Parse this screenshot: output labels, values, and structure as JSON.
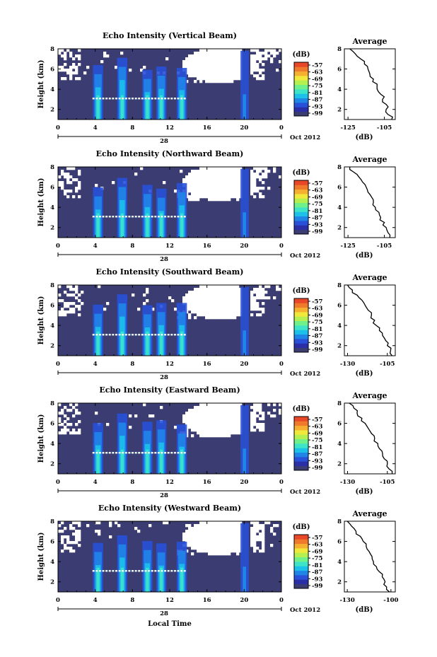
{
  "figure": {
    "date_label": "Oct 2012",
    "day_label": "28",
    "bottom_xlabel": "Local Time",
    "height_ylabel": "Height (km)",
    "unit_label": "(dB)",
    "average_title": "Average",
    "colorbar_ticks": [
      "-57",
      "-63",
      "-69",
      "-75",
      "-81",
      "-87",
      "-93",
      "-99"
    ],
    "colorbar_colors": [
      "#3a3c72",
      "#2a2fa8",
      "#2850d8",
      "#1f86e8",
      "#1cc0e8",
      "#3ee4c8",
      "#6ef08a",
      "#b4f050",
      "#f0e83a",
      "#f5b030",
      "#f07a2c",
      "#e84828"
    ],
    "background_color": "#3a3c72"
  },
  "chart_data": [
    {
      "type": "heatmap",
      "title": "Echo Intensity (Vertical Beam)",
      "xlabel": "",
      "ylabel": "Height (km)",
      "xlim": [
        0,
        24
      ],
      "ylim": [
        1,
        8
      ],
      "x_ticks": [
        "0",
        "4",
        "8",
        "12",
        "16",
        "20",
        "0"
      ],
      "y_ticks": [
        "2",
        "4",
        "6",
        "8"
      ],
      "colorbar_range_db": [
        -99,
        -57
      ],
      "average_profile": {
        "xlabel": "(dB)",
        "x_ticks": [
          "-125",
          "-105"
        ],
        "xlim": [
          -127,
          -99
        ],
        "ylim": [
          1,
          8
        ],
        "height_km": [
          1.0,
          1.5,
          2.0,
          2.5,
          3.0,
          3.5,
          4.0,
          4.5,
          5.0,
          5.5,
          6.0,
          6.5,
          7.0,
          7.5,
          8.0
        ],
        "values_db": [
          -101,
          -103,
          -104,
          -104,
          -106,
          -107,
          -109,
          -109,
          -111,
          -113,
          -114,
          -116,
          -118,
          -121,
          -124
        ]
      }
    },
    {
      "type": "heatmap",
      "title": "Echo Intensity (Northward Beam)",
      "xlabel": "",
      "ylabel": "Height (km)",
      "xlim": [
        0,
        24
      ],
      "ylim": [
        1,
        8
      ],
      "x_ticks": [
        "0",
        "4",
        "8",
        "12",
        "16",
        "20",
        "0"
      ],
      "y_ticks": [
        "2",
        "4",
        "6",
        "8"
      ],
      "colorbar_range_db": [
        -99,
        -57
      ],
      "average_profile": {
        "xlabel": "(dB)",
        "x_ticks": [
          "-125",
          "-105"
        ],
        "xlim": [
          -127,
          -99
        ],
        "ylim": [
          1,
          8
        ],
        "height_km": [
          1.0,
          1.5,
          2.0,
          2.5,
          3.0,
          3.5,
          4.0,
          4.5,
          5.0,
          5.5,
          6.0,
          6.5,
          7.0,
          7.5,
          8.0
        ],
        "values_db": [
          -102,
          -103,
          -104,
          -105,
          -107,
          -108,
          -110,
          -111,
          -112,
          -114,
          -115,
          -117,
          -119,
          -122,
          -124
        ]
      }
    },
    {
      "type": "heatmap",
      "title": "Echo Intensity (Southward Beam)",
      "xlabel": "",
      "ylabel": "Height (km)",
      "xlim": [
        0,
        24
      ],
      "ylim": [
        1,
        8
      ],
      "x_ticks": [
        "0",
        "4",
        "8",
        "12",
        "16",
        "20",
        "0"
      ],
      "y_ticks": [
        "2",
        "4",
        "6",
        "8"
      ],
      "colorbar_range_db": [
        -99,
        -57
      ],
      "average_profile": {
        "xlabel": "(dB)",
        "x_ticks": [
          "-130",
          "-105"
        ],
        "xlim": [
          -132,
          -100
        ],
        "ylim": [
          1,
          8
        ],
        "height_km": [
          1.0,
          1.5,
          2.0,
          2.5,
          3.0,
          3.5,
          4.0,
          4.5,
          5.0,
          5.5,
          6.0,
          6.5,
          7.0,
          7.5,
          8.0
        ],
        "values_db": [
          -102,
          -103,
          -105,
          -106,
          -108,
          -110,
          -112,
          -113,
          -115,
          -117,
          -119,
          -121,
          -124,
          -127,
          -130
        ]
      }
    },
    {
      "type": "heatmap",
      "title": "Echo Intensity (Eastward Beam)",
      "xlabel": "",
      "ylabel": "Height (km)",
      "xlim": [
        0,
        24
      ],
      "ylim": [
        1,
        8
      ],
      "x_ticks": [
        "0",
        "4",
        "8",
        "12",
        "16",
        "20",
        "0"
      ],
      "y_ticks": [
        "2",
        "4",
        "6",
        "8"
      ],
      "colorbar_range_db": [
        -99,
        -57
      ],
      "average_profile": {
        "xlabel": "(dB)",
        "x_ticks": [
          "-130",
          "-105"
        ],
        "xlim": [
          -132,
          -100
        ],
        "ylim": [
          1,
          8
        ],
        "height_km": [
          1.0,
          1.5,
          2.0,
          2.5,
          3.0,
          3.5,
          4.0,
          4.5,
          5.0,
          5.5,
          6.0,
          6.5,
          7.0,
          7.5,
          8.0
        ],
        "values_db": [
          -102,
          -104,
          -105,
          -107,
          -108,
          -110,
          -111,
          -113,
          -115,
          -117,
          -119,
          -121,
          -124,
          -126,
          -129
        ]
      }
    },
    {
      "type": "heatmap",
      "title": "Echo Intensity (Westward Beam)",
      "xlabel": "Local Time",
      "ylabel": "Height (km)",
      "xlim": [
        0,
        24
      ],
      "ylim": [
        1,
        8
      ],
      "x_ticks": [
        "0",
        "4",
        "8",
        "12",
        "16",
        "20",
        "0"
      ],
      "y_ticks": [
        "2",
        "4",
        "6",
        "8"
      ],
      "colorbar_range_db": [
        -99,
        -57
      ],
      "average_profile": {
        "xlabel": "(dB)",
        "x_ticks": [
          "-130",
          "-100"
        ],
        "xlim": [
          -132,
          -97
        ],
        "ylim": [
          1,
          8
        ],
        "height_km": [
          1.0,
          1.5,
          2.0,
          2.5,
          3.0,
          3.5,
          4.0,
          4.5,
          5.0,
          5.5,
          6.0,
          6.5,
          7.0,
          7.5,
          8.0
        ],
        "values_db": [
          -101,
          -103,
          -104,
          -106,
          -108,
          -110,
          -112,
          -113,
          -115,
          -117,
          -119,
          -121,
          -124,
          -127,
          -130
        ]
      }
    }
  ]
}
